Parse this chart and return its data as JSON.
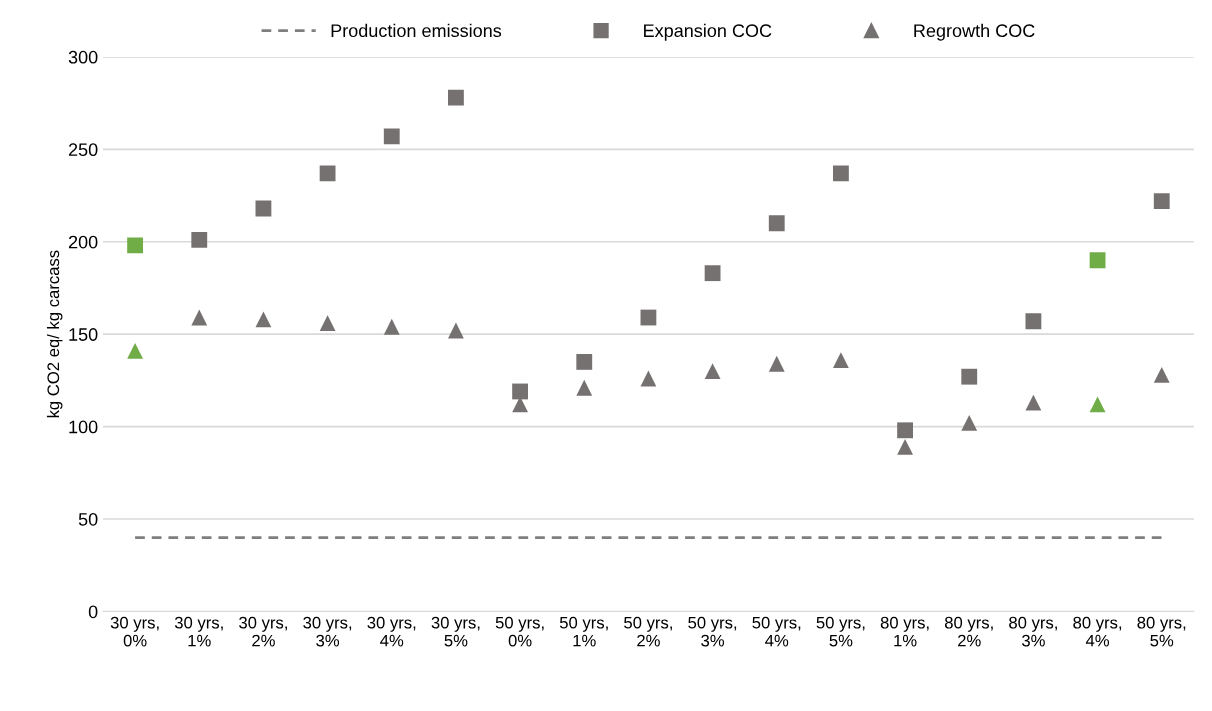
{
  "chart_data": {
    "type": "scatter",
    "ylabel": "kg CO2 eq/ kg carcass",
    "categories": [
      "30 yrs,\n0%",
      "30 yrs,\n1%",
      "30 yrs,\n2%",
      "30 yrs,\n3%",
      "30 yrs,\n4%",
      "30 yrs,\n5%",
      "50 yrs,\n0%",
      "50 yrs,\n1%",
      "50 yrs,\n2%",
      "50 yrs,\n3%",
      "50 yrs,\n4%",
      "50 yrs,\n5%",
      "80 yrs,\n1%",
      "80 yrs,\n2%",
      "80 yrs,\n3%",
      "80 yrs,\n4%",
      "80 yrs,\n5%"
    ],
    "series": [
      {
        "name": "Production emissions",
        "type": "line",
        "line_style": "dashed",
        "marker": "none",
        "color": "#7f7f7f",
        "values": [
          40,
          40,
          40,
          40,
          40,
          40,
          40,
          40,
          40,
          40,
          40,
          40,
          40,
          40,
          40,
          40,
          40
        ]
      },
      {
        "name": "Expansion COC",
        "marker": "square",
        "color": "#767171",
        "colors": [
          "#70ad47",
          "#767171",
          "#767171",
          "#767171",
          "#767171",
          "#767171",
          "#767171",
          "#767171",
          "#767171",
          "#767171",
          "#767171",
          "#767171",
          "#767171",
          "#767171",
          "#767171",
          "#70ad47",
          "#767171"
        ],
        "values": [
          198,
          201,
          218,
          237,
          257,
          278,
          119,
          135,
          159,
          183,
          210,
          237,
          98,
          127,
          157,
          190,
          222
        ]
      },
      {
        "name": "Regrowth COC",
        "marker": "triangle",
        "color": "#767171",
        "colors": [
          "#70ad47",
          "#767171",
          "#767171",
          "#767171",
          "#767171",
          "#767171",
          "#767171",
          "#767171",
          "#767171",
          "#767171",
          "#767171",
          "#767171",
          "#767171",
          "#767171",
          "#767171",
          "#70ad47",
          "#767171"
        ],
        "values": [
          141,
          159,
          158,
          156,
          154,
          152,
          112,
          121,
          126,
          130,
          134,
          136,
          89,
          102,
          113,
          112,
          128
        ]
      }
    ],
    "ylim": [
      0,
      300
    ],
    "yticks": [
      0,
      50,
      100,
      150,
      200,
      250,
      300
    ],
    "grid": "y",
    "legend": "top"
  }
}
